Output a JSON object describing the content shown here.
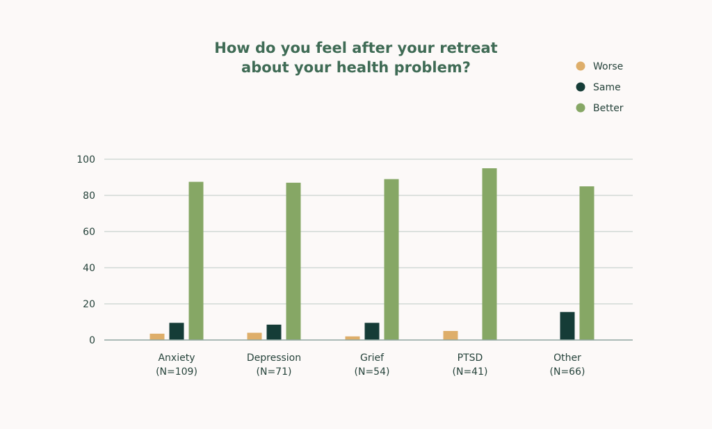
{
  "chart_data": {
    "type": "bar",
    "title": "How do you feel after your retreat about your health problem?",
    "title_lines": [
      "How do you feel after your retreat",
      "about your health problem?"
    ],
    "xlabel": "",
    "ylabel": "",
    "categories": [
      [
        "Anxiety",
        "(N=109)"
      ],
      [
        "Depression",
        "(N=71)"
      ],
      [
        "Grief",
        "(N=54)"
      ],
      [
        "PTSD",
        "(N=41)"
      ],
      [
        "Other",
        "(N=66)"
      ]
    ],
    "series": [
      {
        "name": "Worse",
        "color": "#deae6a",
        "values": [
          3.5,
          4,
          2,
          5,
          0
        ]
      },
      {
        "name": "Same",
        "color": "#153c37",
        "values": [
          9.5,
          8.5,
          9.5,
          0,
          15.5
        ]
      },
      {
        "name": "Better",
        "color": "#86a765",
        "values": [
          87.5,
          87,
          89,
          95,
          85
        ]
      }
    ],
    "ylim": [
      0,
      100
    ],
    "yticks": [
      0,
      20,
      40,
      60,
      80,
      100
    ],
    "grid": true,
    "legend_position": "top-right"
  }
}
